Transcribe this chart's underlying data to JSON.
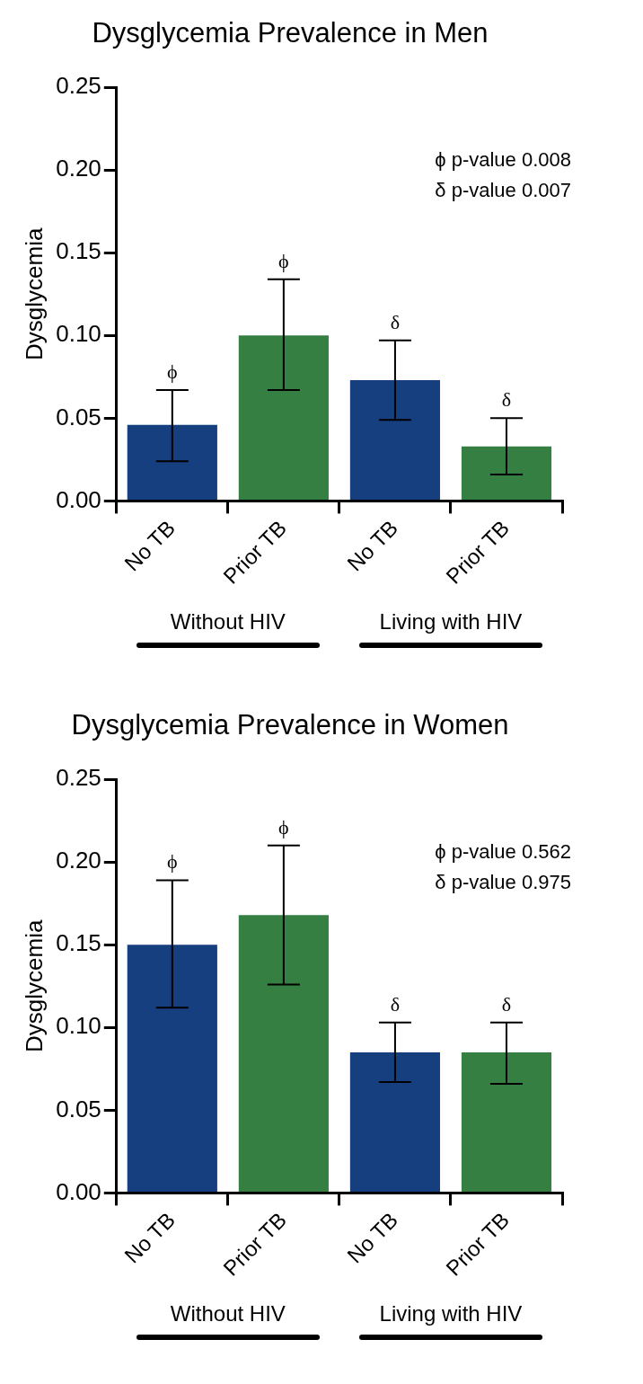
{
  "chart_data": [
    {
      "type": "bar",
      "title": "Dysglycemia Prevalence in Men",
      "ylabel": "Dysglycemia",
      "categories": [
        "No TB",
        "Prior TB",
        "No TB",
        "Prior TB"
      ],
      "values": [
        0.046,
        0.1,
        0.073,
        0.033
      ],
      "colors": [
        "#163f80",
        "#347f41",
        "#163f80",
        "#347f41"
      ],
      "errors": [
        [
          0.024,
          0.067
        ],
        [
          0.067,
          0.134
        ],
        [
          0.049,
          0.097
        ],
        [
          0.016,
          0.05
        ]
      ],
      "ylim": [
        0,
        0.25
      ],
      "yticks": [
        {
          "value": 0,
          "label": "0.00"
        },
        {
          "value": 0.05,
          "label": "0.05"
        },
        {
          "value": 0.1,
          "label": "0.10"
        },
        {
          "value": 0.15,
          "label": "0.15"
        },
        {
          "value": 0.2,
          "label": "0.20"
        },
        {
          "value": 0.25,
          "label": "0.25"
        }
      ],
      "grid": false,
      "legend": false,
      "annotations": [
        "ϕ",
        "ϕ",
        "δ",
        "δ",
        "ϕ p-value 0.008",
        "δ p-value 0.007",
        "Without HIV",
        "Living with HIV"
      ]
    },
    {
      "type": "bar",
      "title": "Dysglycemia Prevalence in Women",
      "ylabel": "Dysglycemia",
      "categories": [
        "No TB",
        "Prior TB",
        "No TB",
        "Prior TB"
      ],
      "values": [
        0.15,
        0.168,
        0.085,
        0.085
      ],
      "colors": [
        "#163f80",
        "#347f41",
        "#163f80",
        "#347f41"
      ],
      "errors": [
        [
          0.112,
          0.189
        ],
        [
          0.126,
          0.21
        ],
        [
          0.067,
          0.103
        ],
        [
          0.066,
          0.103
        ]
      ],
      "ylim": [
        0,
        0.25
      ],
      "yticks": [
        {
          "value": 0,
          "label": "0.00"
        },
        {
          "value": 0.05,
          "label": "0.05"
        },
        {
          "value": 0.1,
          "label": "0.10"
        },
        {
          "value": 0.15,
          "label": "0.15"
        },
        {
          "value": 0.2,
          "label": "0.20"
        },
        {
          "value": 0.25,
          "label": "0.25"
        }
      ],
      "grid": false,
      "legend": false,
      "annotations": [
        "ϕ",
        "ϕ",
        "δ",
        "δ",
        "ϕ p-value 0.562",
        "δ p-value 0.975",
        "Without HIV",
        "Living with HIV"
      ]
    }
  ]
}
